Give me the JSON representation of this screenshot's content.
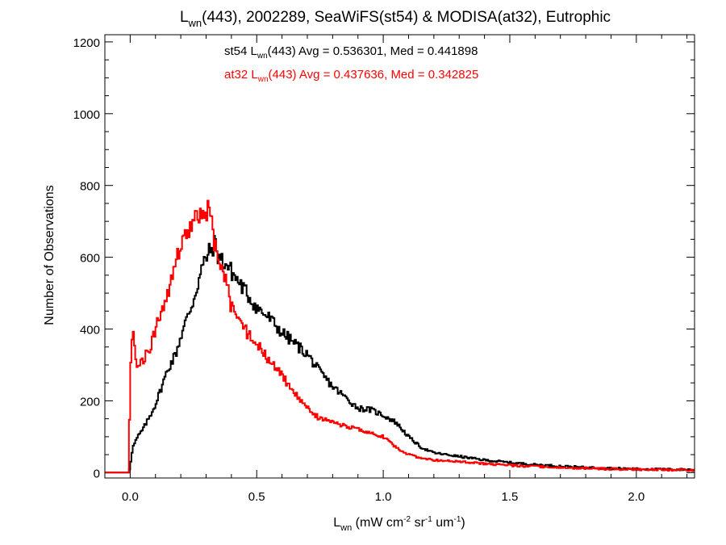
{
  "chart_data": {
    "type": "line",
    "title": "L(wn)(443), 2002289, SeaWiFS(st54) & MODISA(at32), Eutrophic",
    "title_parts": {
      "pre": "L",
      "sub": "wn",
      "post": "(443), 2002289, SeaWiFS(st54) & MODISA(at32), Eutrophic"
    },
    "xlabel_parts": {
      "pre": "L",
      "sub": "wn",
      "mid": " (mW cm",
      "sup1": "-2",
      "mid2": " sr",
      "sup2": "-1",
      "mid3": " um",
      "sup3": "-1",
      "post": ")"
    },
    "ylabel": "Number of Observations",
    "xlim": [
      -0.1,
      2.23
    ],
    "ylim": [
      -15,
      1220
    ],
    "x_ticks": [
      "0.0",
      "0.5",
      "1.0",
      "1.5",
      "2.0"
    ],
    "y_ticks": [
      "0",
      "200",
      "400",
      "600",
      "800",
      "1000",
      "1200"
    ],
    "grid": false,
    "bin_width": 0.01,
    "annotations": [
      {
        "pre": "st54 L",
        "sub": "wn",
        "post": "(443) Avg = 0.536301, Med = 0.441898",
        "color": "#000000"
      },
      {
        "pre": "at32 L",
        "sub": "wn",
        "post": "(443) Avg = 0.437636, Med = 0.342825",
        "color": "#ff0000"
      }
    ],
    "series": [
      {
        "color": "#000000",
        "anchors_x": [
          -0.1,
          -0.005,
          0.0,
          0.01,
          0.03,
          0.05,
          0.08,
          0.1,
          0.12,
          0.15,
          0.18,
          0.2,
          0.22,
          0.25,
          0.28,
          0.3,
          0.32,
          0.335,
          0.35,
          0.38,
          0.4,
          0.45,
          0.5,
          0.55,
          0.6,
          0.65,
          0.7,
          0.75,
          0.8,
          0.85,
          0.9,
          0.95,
          1.0,
          1.05,
          1.1,
          1.15,
          1.2,
          1.3,
          1.4,
          1.5,
          1.6,
          1.7,
          1.8,
          1.9,
          2.0,
          2.1,
          2.23
        ],
        "anchors_y": [
          0,
          0,
          20,
          70,
          100,
          120,
          160,
          190,
          230,
          290,
          330,
          380,
          420,
          480,
          560,
          600,
          620,
          640,
          600,
          580,
          560,
          510,
          460,
          430,
          390,
          360,
          330,
          280,
          240,
          210,
          180,
          175,
          160,
          140,
          100,
          70,
          55,
          45,
          35,
          28,
          22,
          18,
          14,
          12,
          10,
          9,
          8
        ]
      },
      {
        "color": "#ff0000",
        "anchors_x": [
          -0.1,
          -0.005,
          0.0,
          0.005,
          0.01,
          0.02,
          0.03,
          0.05,
          0.08,
          0.1,
          0.12,
          0.15,
          0.18,
          0.2,
          0.22,
          0.25,
          0.28,
          0.3,
          0.31,
          0.32,
          0.33,
          0.35,
          0.38,
          0.4,
          0.45,
          0.5,
          0.55,
          0.6,
          0.65,
          0.7,
          0.75,
          0.8,
          0.85,
          0.9,
          0.95,
          1.0,
          1.05,
          1.1,
          1.15,
          1.2,
          1.3,
          1.4,
          1.5,
          1.6,
          1.7,
          1.8,
          1.9,
          2.0,
          2.1,
          2.23
        ],
        "anchors_y": [
          0,
          0,
          300,
          340,
          400,
          320,
          300,
          310,
          350,
          400,
          440,
          500,
          580,
          630,
          660,
          700,
          710,
          720,
          740,
          700,
          650,
          600,
          530,
          460,
          400,
          360,
          310,
          270,
          220,
          180,
          150,
          140,
          130,
          120,
          110,
          100,
          70,
          50,
          40,
          35,
          30,
          25,
          20,
          17,
          14,
          12,
          10,
          9,
          8,
          7
        ]
      }
    ]
  }
}
